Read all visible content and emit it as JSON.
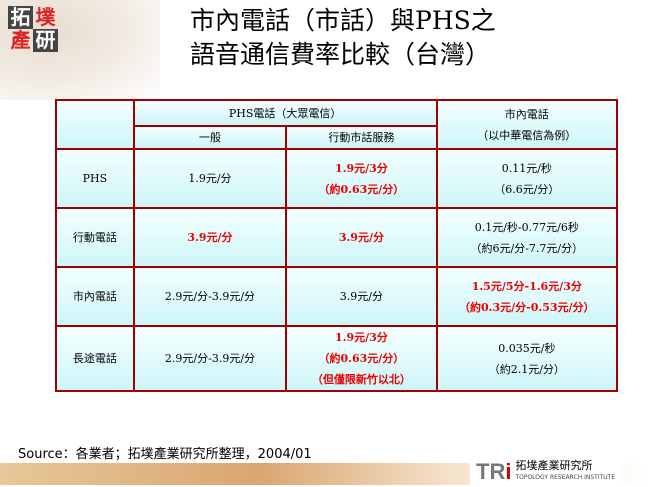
{
  "logo": {
    "chars": [
      "拓",
      "墣",
      "產",
      "研"
    ]
  },
  "title": {
    "line1": "市內電話（市話）與PHS之",
    "line2": "語音通信費率比較（台灣）"
  },
  "table": {
    "header": {
      "phs": "PHS電話（大眾電信）",
      "general": "一般",
      "mobile_local": "行動市話服務",
      "local_line1": "市內電話",
      "local_line2": "（以中華電信為例）"
    },
    "rows": [
      {
        "label": "PHS",
        "general": [
          "1.9元/分"
        ],
        "mobile_local": [
          "1.9元/3分",
          "（約0.63元/分）"
        ],
        "local": [
          "0.11元/秒",
          "（6.6元/分）"
        ]
      },
      {
        "label": "行動電話",
        "general": [
          "3.9元/分"
        ],
        "mobile_local": [
          "3.9元/分"
        ],
        "local": [
          "0.1元/秒-0.77元/6秒",
          "（約6元/分-7.7元/分）"
        ]
      },
      {
        "label": "市內電話",
        "general": [
          "2.9元/分-3.9元/分"
        ],
        "mobile_local": [
          "3.9元/分"
        ],
        "local": [
          "1.5元/5分-1.6元/3分",
          "（約0.3元/分-0.53元/分）"
        ]
      },
      {
        "label": "長途電話",
        "general": [
          "2.9元/分-3.9元/分"
        ],
        "mobile_local": [
          "1.9元/3分",
          "（約0.63元/分）",
          "（但僅限新竹以北）"
        ],
        "local": [
          "0.035元/秒",
          "（約2.1元/分）"
        ]
      }
    ]
  },
  "source": "Source：各業者；拓墣產業研究所整理，2004/01",
  "footer_logo": {
    "mark": "TRi",
    "name": "拓墣產業研究所",
    "sub": "TOPOLOGY RESEARCH INSTITUTE"
  },
  "colors": {
    "border": "#a00000",
    "highlight": "#ee0000"
  }
}
